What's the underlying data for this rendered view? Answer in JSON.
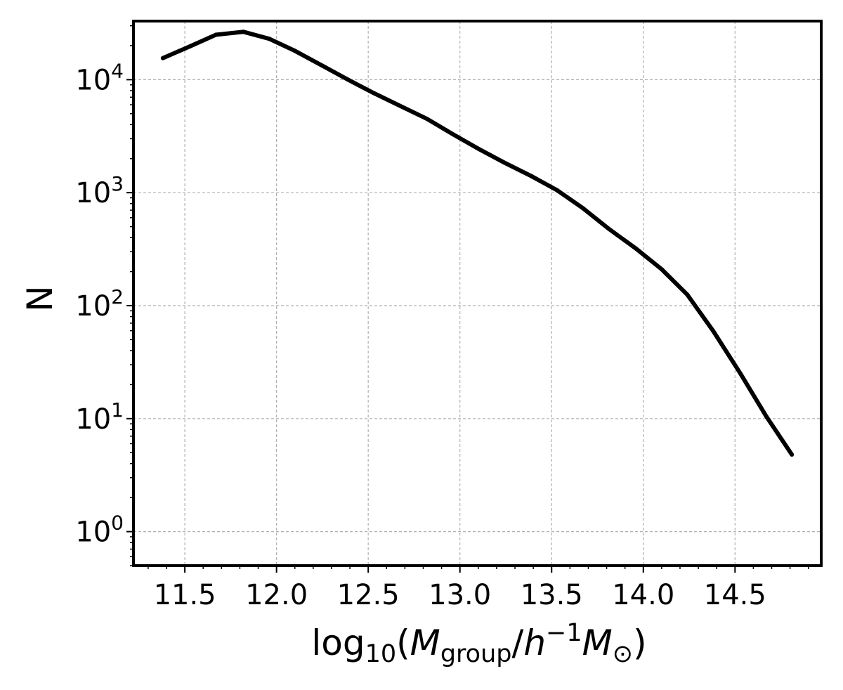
{
  "chart_data": {
    "type": "line",
    "title": "",
    "xlabel": "log10(Mgroup/h−1M⊙)",
    "xlabel_parts": {
      "fn": "log",
      "fn_sub": "10",
      "open": "(",
      "var": "M",
      "var_sub": "group",
      "slash": "/",
      "h": "h",
      "h_sup": "−1",
      "sun": "M",
      "sun_sub": "⊙",
      "close": ")"
    },
    "ylabel": "N",
    "xlim": [
      11.22,
      14.97
    ],
    "ylim": [
      0.5,
      33000
    ],
    "yscale": "log",
    "grid": true,
    "x_ticks": [
      "11.5",
      "12.0",
      "12.5",
      "13.0",
      "13.5",
      "14.0",
      "14.5"
    ],
    "y_ticks": [
      {
        "base": "10",
        "exp": "0"
      },
      {
        "base": "10",
        "exp": "1"
      },
      {
        "base": "10",
        "exp": "2"
      },
      {
        "base": "10",
        "exp": "3"
      },
      {
        "base": "10",
        "exp": "4"
      }
    ],
    "series": [
      {
        "color": "#000000",
        "x": [
          11.38,
          11.53,
          11.67,
          11.82,
          11.96,
          12.1,
          12.25,
          12.39,
          12.53,
          12.67,
          12.82,
          12.96,
          13.1,
          13.24,
          13.39,
          13.53,
          13.67,
          13.81,
          13.96,
          14.1,
          14.24,
          14.38,
          14.53,
          14.67,
          14.81
        ],
        "y": [
          15500,
          19800,
          25000,
          26500,
          23000,
          18000,
          13300,
          10000,
          7600,
          5900,
          4500,
          3300,
          2450,
          1850,
          1400,
          1050,
          730,
          480,
          320,
          210,
          125,
          60,
          25,
          10.5,
          4.8
        ]
      }
    ]
  }
}
